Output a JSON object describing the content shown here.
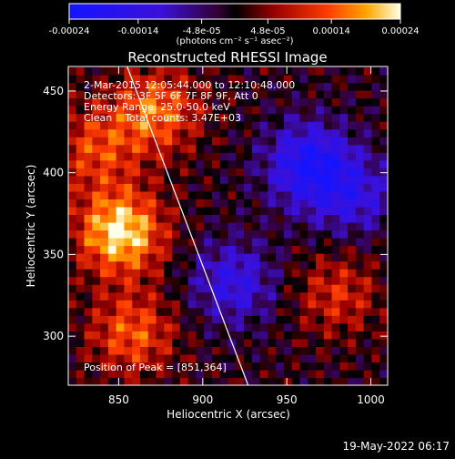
{
  "chart_data": {
    "type": "heatmap",
    "title": "Reconstructed RHESSI Image",
    "xlabel": "Heliocentric X (arcsec)",
    "ylabel": "Heliocentric Y (arcsec)",
    "xlim": [
      820,
      1010
    ],
    "ylim": [
      270,
      465
    ],
    "x_ticks": [
      850,
      900,
      950,
      1000
    ],
    "y_ticks": [
      300,
      350,
      400,
      450
    ],
    "colorbar": {
      "min": -0.00024,
      "max": 0.00024,
      "ticks": [
        "-0.00024",
        "-0.00014",
        "-4.8e-05",
        "4.8e-05",
        "0.00014",
        "0.00024"
      ],
      "unit_label": "(photons cm⁻² s⁻¹ asec⁻²)"
    },
    "annotations": [
      "2-Mar-2015 12:05:44.000 to 12:10:48.000",
      "Detectors: 3F 5F 6F 7F 8F 9F, Att 0",
      "Energy Range: 25.0-50.0 keV",
      "Clean    Total counts: 3.47E+03",
      "Position of Peak = [851,364]"
    ],
    "peak": {
      "x": 851,
      "y": 364
    },
    "limb_line": [
      [
        855,
        465
      ],
      [
        927,
        270
      ]
    ],
    "bright_regions": [
      {
        "x": 851,
        "y": 364,
        "value": 0.00024
      },
      {
        "x": 872,
        "y": 438,
        "value": 0.00016
      },
      {
        "x": 858,
        "y": 302,
        "value": 0.00014
      },
      {
        "x": 836,
        "y": 415,
        "value": 0.00012
      },
      {
        "x": 980,
        "y": 326,
        "value": 0.0001
      }
    ],
    "dark_regions": [
      {
        "x": 963,
        "y": 405,
        "value": -0.0002
      },
      {
        "x": 918,
        "y": 333,
        "value": -0.00014
      },
      {
        "x": 990,
        "y": 386,
        "value": -0.00012
      }
    ]
  },
  "footer": {
    "timestamp": "19-May-2022 06:17"
  },
  "colors": {
    "background": "#000000",
    "foreground": "#ffffff"
  }
}
